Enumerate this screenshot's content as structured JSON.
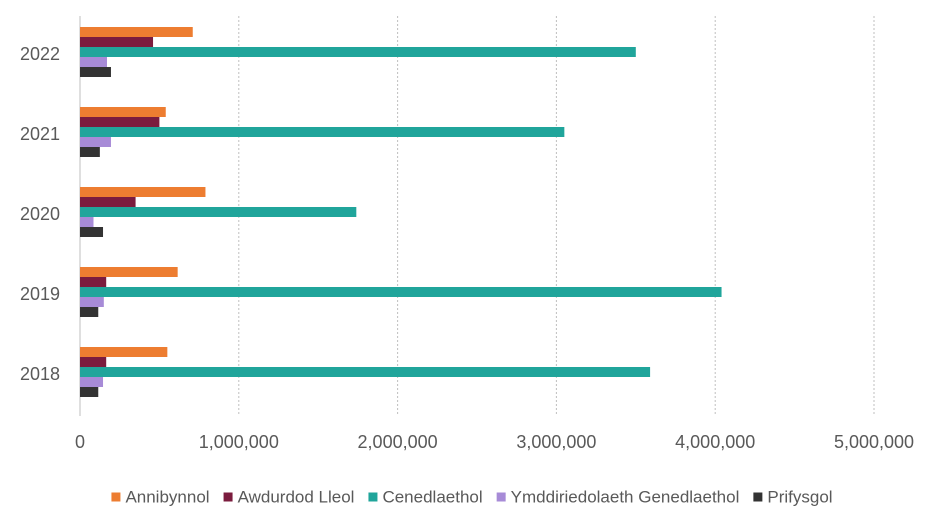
{
  "chart_data": {
    "type": "bar",
    "orientation": "horizontal",
    "categories": [
      "2022",
      "2021",
      "2020",
      "2019",
      "2018"
    ],
    "series": [
      {
        "name": "Annibynnol",
        "color": "#ED7D31",
        "values": [
          710000,
          540000,
          790000,
          615000,
          550000
        ]
      },
      {
        "name": "Awdurdod Lleol",
        "color": "#7B1C3E",
        "values": [
          460000,
          500000,
          350000,
          165000,
          165000
        ]
      },
      {
        "name": "Cenedlaethol",
        "color": "#20A59B",
        "values": [
          3500000,
          3050000,
          1740000,
          4040000,
          3590000
        ]
      },
      {
        "name": "Ymddiriedolaeth Genedlaethol",
        "color": "#A78BD7",
        "values": [
          170000,
          195000,
          85000,
          150000,
          145000
        ]
      },
      {
        "name": "Prifysgol",
        "color": "#333333",
        "values": [
          195000,
          125000,
          145000,
          115000,
          115000
        ]
      }
    ],
    "x_ticks": [
      "0",
      "1,000,000",
      "2,000,000",
      "3,000,000",
      "4,000,000",
      "5,000,000"
    ],
    "xlim": [
      0,
      5000000
    ],
    "grid": true,
    "legend_position": "bottom"
  }
}
